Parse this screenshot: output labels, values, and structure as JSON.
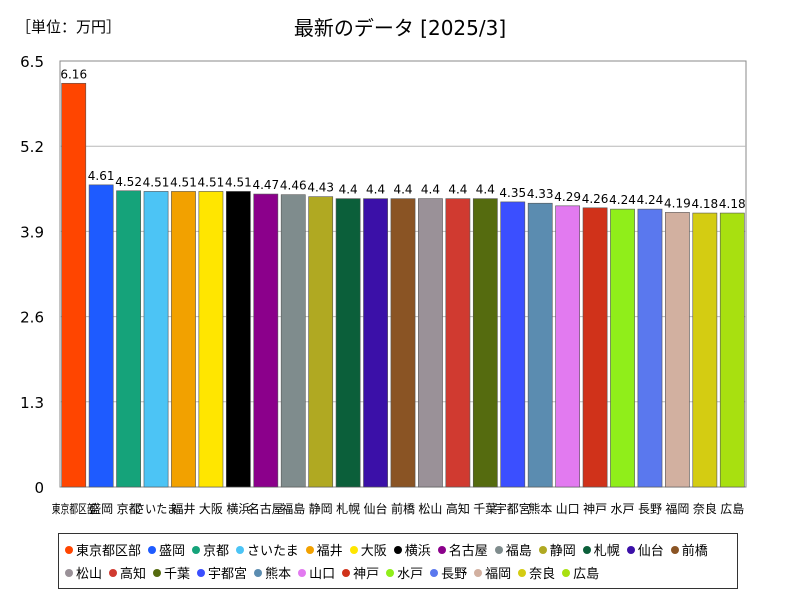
{
  "unit_label": "［単位：万円］",
  "chart_data": {
    "type": "bar",
    "title": "最新のデータ [2025/3]",
    "ylim": [
      0,
      6.5
    ],
    "yticks": [
      "0",
      "1.3",
      "2.6",
      "3.9",
      "5.2",
      "6.5"
    ],
    "grid": true,
    "legend_position": "bottom",
    "categories": [
      "東京都区部",
      "盛岡",
      "京都",
      "さいたま",
      "福井",
      "大阪",
      "横浜",
      "名古屋",
      "福島",
      "静岡",
      "札幌",
      "仙台",
      "前橋",
      "松山",
      "高知",
      "千葉",
      "宇都宮",
      "熊本",
      "山口",
      "神戸",
      "水戸",
      "長野",
      "福岡",
      "奈良",
      "広島"
    ],
    "values": [
      6.16,
      4.61,
      4.52,
      4.51,
      4.51,
      4.51,
      4.51,
      4.47,
      4.46,
      4.43,
      4.4,
      4.4,
      4.4,
      4.4,
      4.4,
      4.4,
      4.35,
      4.33,
      4.29,
      4.26,
      4.24,
      4.24,
      4.19,
      4.18,
      4.18
    ],
    "value_labels": [
      "6.16",
      "4.61",
      "4.52",
      "4.51",
      "4.51",
      "4.51",
      "4.51",
      "4.47",
      "4.46",
      "4.43",
      "4.4",
      "4.4",
      "4.4",
      "4.4",
      "4.4",
      "4.4",
      "4.35",
      "4.33",
      "4.29",
      "4.26",
      "4.24",
      "4.24",
      "4.19",
      "4.18",
      "4.18"
    ],
    "colors": [
      "#ff4500",
      "#1e5bff",
      "#15a37a",
      "#4cc4f5",
      "#f2a100",
      "#ffe600",
      "#000000",
      "#8b008b",
      "#7f8c8d",
      "#b0a922",
      "#0b5f3a",
      "#3b10a8",
      "#8a5424",
      "#9a9198",
      "#d03a30",
      "#556b0f",
      "#3b4fff",
      "#5b8cb0",
      "#e27af0",
      "#d0321a",
      "#90ee1a",
      "#5a78ee",
      "#d2b0a0",
      "#d4cc12",
      "#a8e010"
    ]
  }
}
